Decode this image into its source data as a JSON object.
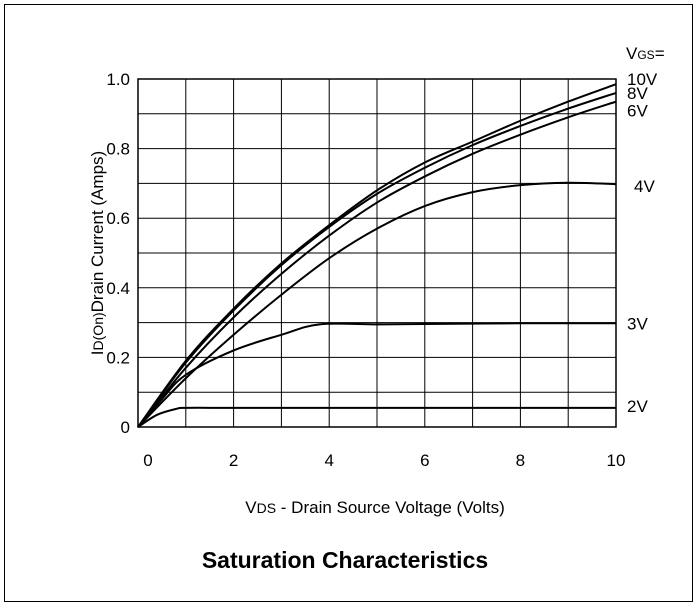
{
  "chart_data": {
    "type": "line",
    "title": "Saturation Characteristics",
    "xlabel": {
      "prefix": "V",
      "sub": "DS",
      "text": " - Drain Source Voltage (Volts)"
    },
    "ylabel": {
      "prefix": "I",
      "sub": "D(On)",
      "text": "Drain Current (Amps)"
    },
    "legend_title": {
      "prefix": "V",
      "sub": "GS",
      "suffix": "="
    },
    "xlim": [
      0,
      10
    ],
    "ylim": [
      0,
      1.0
    ],
    "x_ticks": [
      "0",
      "2",
      "4",
      "6",
      "8",
      "10"
    ],
    "y_ticks": [
      "0",
      "0.2",
      "0.4",
      "0.6",
      "0.8",
      "1.0"
    ],
    "grid": true,
    "series": [
      {
        "name": "10V",
        "x": [
          0,
          1,
          2,
          3,
          4,
          5,
          6,
          7,
          8,
          9,
          10
        ],
        "y": [
          0,
          0.19,
          0.34,
          0.47,
          0.58,
          0.68,
          0.76,
          0.82,
          0.88,
          0.935,
          0.985
        ]
      },
      {
        "name": "8V",
        "x": [
          0,
          1,
          2,
          3,
          4,
          5,
          6,
          7,
          8,
          9,
          10
        ],
        "y": [
          0,
          0.185,
          0.335,
          0.465,
          0.575,
          0.67,
          0.745,
          0.81,
          0.865,
          0.915,
          0.96
        ]
      },
      {
        "name": "6V",
        "x": [
          0,
          1,
          2,
          3,
          4,
          5,
          6,
          7,
          8,
          9,
          10
        ],
        "y": [
          0,
          0.17,
          0.315,
          0.44,
          0.55,
          0.645,
          0.72,
          0.785,
          0.84,
          0.89,
          0.935
        ]
      },
      {
        "name": "4V",
        "x": [
          0,
          1,
          2,
          3,
          4,
          5,
          6,
          7,
          8,
          9,
          10
        ],
        "y": [
          0,
          0.14,
          0.265,
          0.38,
          0.485,
          0.57,
          0.635,
          0.675,
          0.695,
          0.702,
          0.698
        ]
      },
      {
        "name": "3V",
        "x": [
          0,
          0.5,
          1,
          2,
          3,
          3.8,
          5,
          6,
          8,
          10
        ],
        "y": [
          0,
          0.08,
          0.15,
          0.22,
          0.265,
          0.295,
          0.295,
          0.296,
          0.298,
          0.298
        ]
      },
      {
        "name": "2V",
        "x": [
          0,
          0.4,
          0.8,
          1,
          2,
          4,
          6,
          8,
          10
        ],
        "y": [
          0,
          0.035,
          0.052,
          0.055,
          0.055,
          0.055,
          0.055,
          0.055,
          0.055
        ]
      }
    ]
  }
}
